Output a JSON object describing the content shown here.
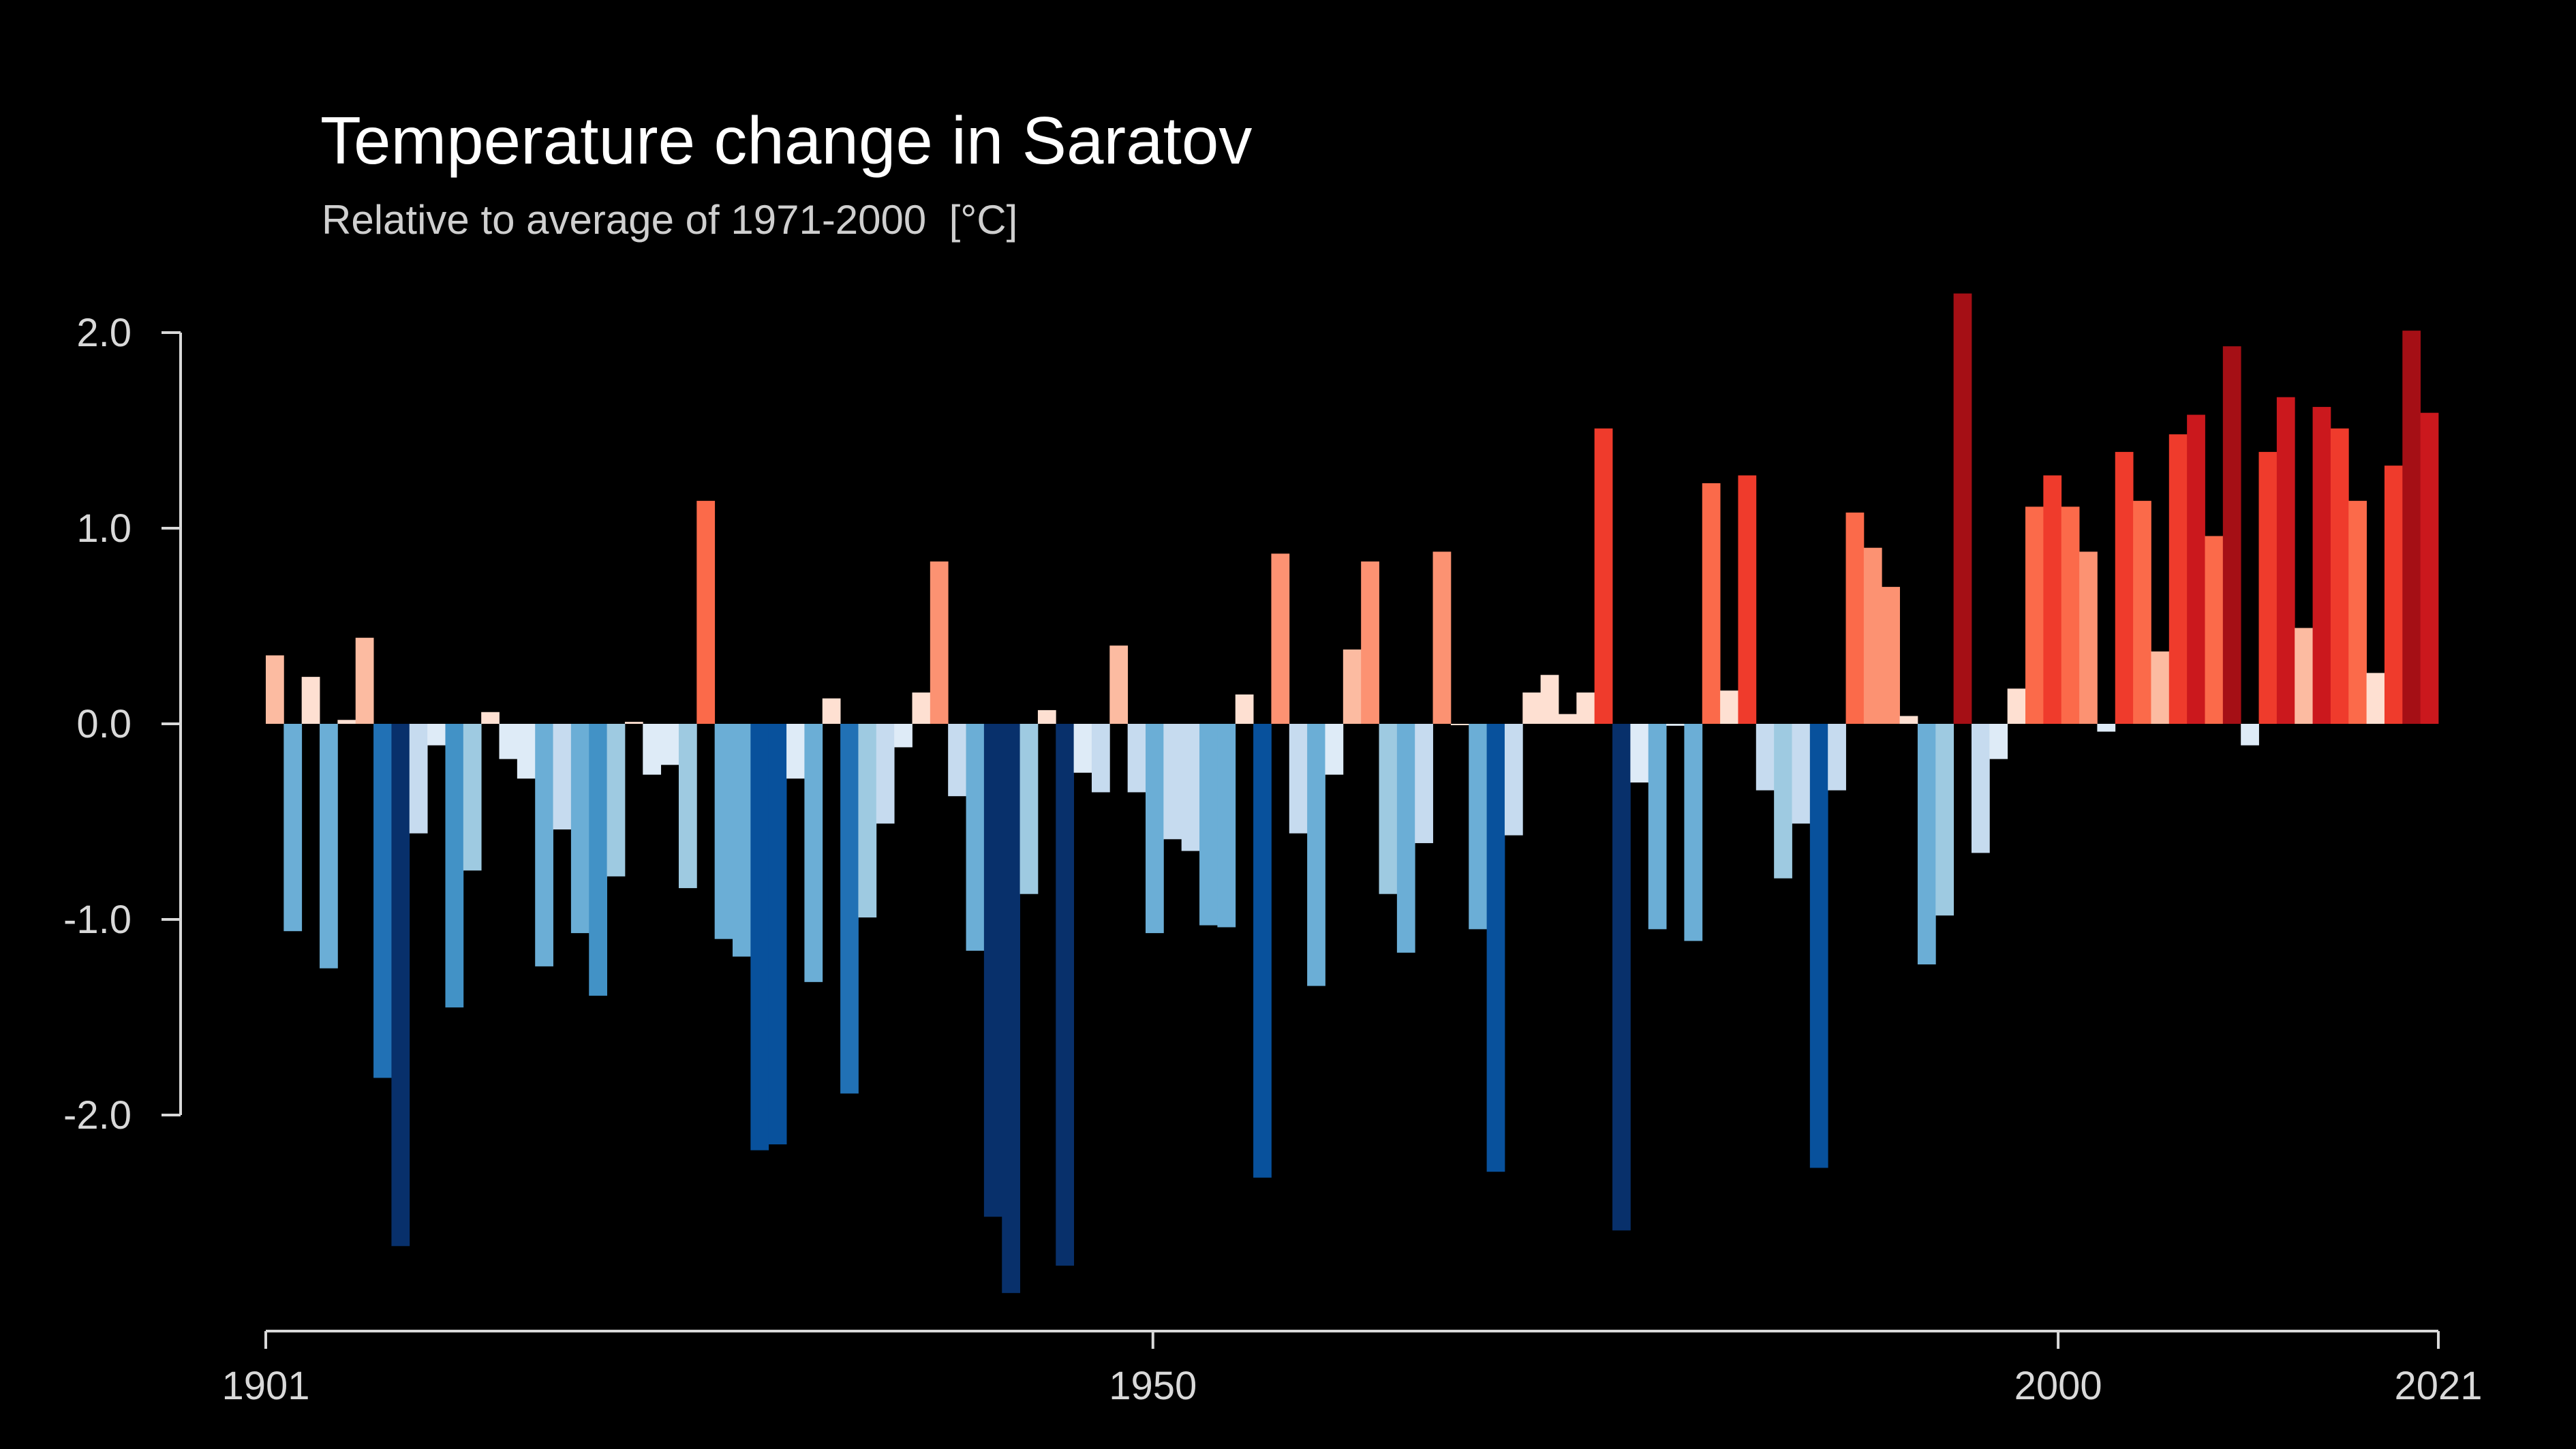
{
  "chart_data": {
    "type": "bar",
    "title": "Temperature change in Saratov",
    "subtitle": "Relative to average of 1971-2000  [°C]",
    "xlabel": "",
    "ylabel": "",
    "x_start": 1901,
    "x_end": 2021,
    "xlim": [
      1901,
      2021
    ],
    "ylim": [
      -3.1,
      2.2
    ],
    "x_ticks": [
      1901,
      1950,
      2000,
      2021
    ],
    "x_tick_labels": [
      "1901",
      "1950",
      "2000",
      "2021"
    ],
    "y_ticks": [
      2.0,
      1.0,
      0.0,
      -1.0,
      -2.0
    ],
    "y_tick_labels": [
      "2.0",
      "1.0",
      "0.0",
      "-1.0",
      "-2.0"
    ],
    "grid": false,
    "legend": "none",
    "color_scale": "blue (cold) to red (warm), diverging",
    "values": [
      0.35,
      -1.06,
      0.24,
      -1.25,
      0.02,
      0.44,
      -1.81,
      -2.67,
      -0.56,
      -0.11,
      -1.45,
      -0.75,
      0.06,
      -0.18,
      -0.28,
      -1.24,
      -0.54,
      -1.07,
      -1.39,
      -0.78,
      0.01,
      -0.26,
      -0.21,
      -0.84,
      1.14,
      -1.1,
      -1.19,
      -2.18,
      -2.15,
      -0.28,
      -1.32,
      0.13,
      -1.89,
      -0.99,
      -0.51,
      -0.12,
      0.16,
      0.83,
      -0.37,
      -1.16,
      -2.52,
      -2.91,
      -0.87,
      0.07,
      -2.77,
      -0.25,
      -0.35,
      0.4,
      -0.35,
      -1.07,
      -0.59,
      -0.65,
      -1.03,
      -1.04,
      0.15,
      -2.32,
      0.87,
      -0.56,
      -1.34,
      -0.26,
      0.38,
      0.83,
      -0.87,
      -1.17,
      -0.61,
      0.88,
      0.0,
      -1.05,
      -2.29,
      -0.57,
      0.16,
      0.25,
      0.05,
      0.16,
      1.51,
      -2.59,
      -0.3,
      -1.05,
      -0.01,
      -1.11,
      1.23,
      0.17,
      1.27,
      -0.34,
      -0.79,
      -0.51,
      -2.27,
      -0.34,
      1.08,
      0.9,
      0.7,
      0.04,
      -1.23,
      -0.98,
      2.2,
      -0.66,
      -0.18,
      0.18,
      1.11,
      1.27,
      1.11,
      0.88,
      -0.04,
      1.39,
      1.14,
      0.37,
      1.48,
      1.58,
      0.96,
      1.93,
      -0.11,
      1.39,
      1.67,
      0.49,
      1.62,
      1.51,
      1.14,
      0.26,
      1.32,
      2.01,
      1.59
    ]
  }
}
